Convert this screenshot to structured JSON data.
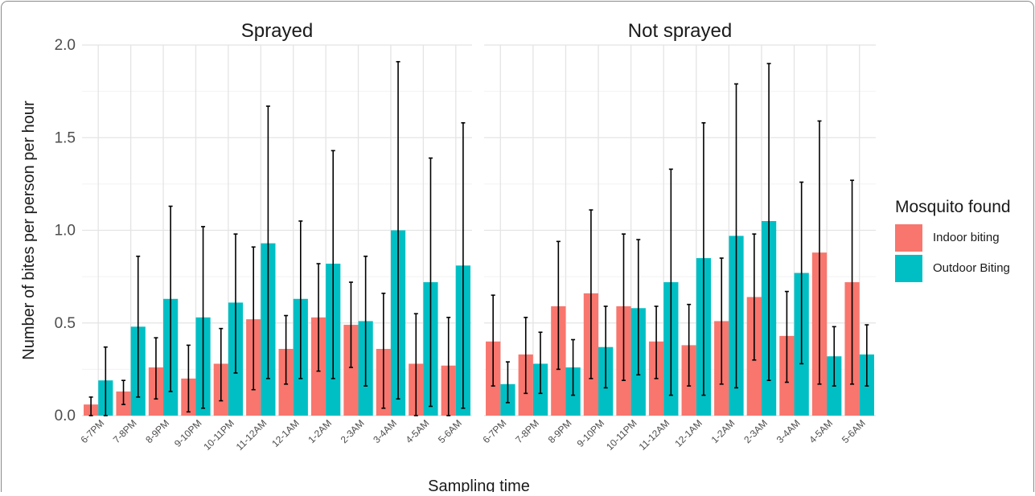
{
  "chart_data": {
    "type": "bar",
    "xlabel": "Sampling time",
    "ylabel": "Number of bites per person per hour",
    "ylim": [
      0,
      2.0
    ],
    "yticks": [
      "0.0",
      "0.5",
      "1.0",
      "1.5",
      "2.0"
    ],
    "grid": true,
    "legend_position": "right",
    "legend": {
      "title": "Mosquito found",
      "entries": [
        {
          "label": "Indoor biting",
          "color": "#F8766D"
        },
        {
          "label": "Outdoor Biting",
          "color": "#00BFC4"
        }
      ]
    },
    "categories": [
      "6-7PM",
      "7-8PM",
      "8-9PM",
      "9-10PM",
      "10-11PM",
      "11-12AM",
      "12-1AM",
      "1-2AM",
      "2-3AM",
      "3-4AM",
      "4-5AM",
      "5-6AM"
    ],
    "panels": [
      {
        "title": "Sprayed",
        "series": [
          {
            "name": "Indoor biting",
            "color": "#F8766D",
            "values": [
              0.06,
              0.13,
              0.26,
              0.2,
              0.28,
              0.52,
              0.36,
              0.53,
              0.49,
              0.36,
              0.28,
              0.27
            ],
            "err_low": [
              0.0,
              0.06,
              0.09,
              0.02,
              0.08,
              0.14,
              0.17,
              0.24,
              0.26,
              0.04,
              0.0,
              0.0
            ],
            "err_high": [
              0.1,
              0.19,
              0.42,
              0.38,
              0.47,
              0.91,
              0.54,
              0.82,
              0.72,
              0.66,
              0.55,
              0.53
            ]
          },
          {
            "name": "Outdoor Biting",
            "color": "#00BFC4",
            "values": [
              0.19,
              0.48,
              0.63,
              0.53,
              0.61,
              0.93,
              0.63,
              0.82,
              0.51,
              1.0,
              0.72,
              0.81
            ],
            "err_low": [
              0.0,
              0.1,
              0.13,
              0.04,
              0.23,
              0.2,
              0.2,
              0.2,
              0.16,
              0.09,
              0.05,
              0.04
            ],
            "err_high": [
              0.37,
              0.86,
              1.13,
              1.02,
              0.98,
              1.67,
              1.05,
              1.43,
              0.86,
              1.91,
              1.39,
              1.58
            ]
          }
        ]
      },
      {
        "title": "Not sprayed",
        "series": [
          {
            "name": "Indoor biting",
            "color": "#F8766D",
            "values": [
              0.4,
              0.33,
              0.59,
              0.66,
              0.59,
              0.4,
              0.38,
              0.51,
              0.64,
              0.43,
              0.88,
              0.72
            ],
            "err_low": [
              0.16,
              0.12,
              0.25,
              0.2,
              0.19,
              0.2,
              0.16,
              0.17,
              0.3,
              0.18,
              0.17,
              0.17
            ],
            "err_high": [
              0.65,
              0.53,
              0.94,
              1.11,
              0.98,
              0.59,
              0.6,
              0.85,
              0.98,
              0.67,
              1.59,
              1.27
            ]
          },
          {
            "name": "Outdoor Biting",
            "color": "#00BFC4",
            "values": [
              0.17,
              0.28,
              0.26,
              0.37,
              0.58,
              0.72,
              0.85,
              0.97,
              1.05,
              0.77,
              0.32,
              0.33
            ],
            "err_low": [
              0.07,
              0.12,
              0.11,
              0.15,
              0.22,
              0.11,
              0.11,
              0.15,
              0.19,
              0.28,
              0.16,
              0.16
            ],
            "err_high": [
              0.29,
              0.45,
              0.41,
              0.59,
              0.95,
              1.33,
              1.58,
              1.79,
              1.9,
              1.26,
              0.48,
              0.49
            ]
          }
        ]
      }
    ]
  }
}
